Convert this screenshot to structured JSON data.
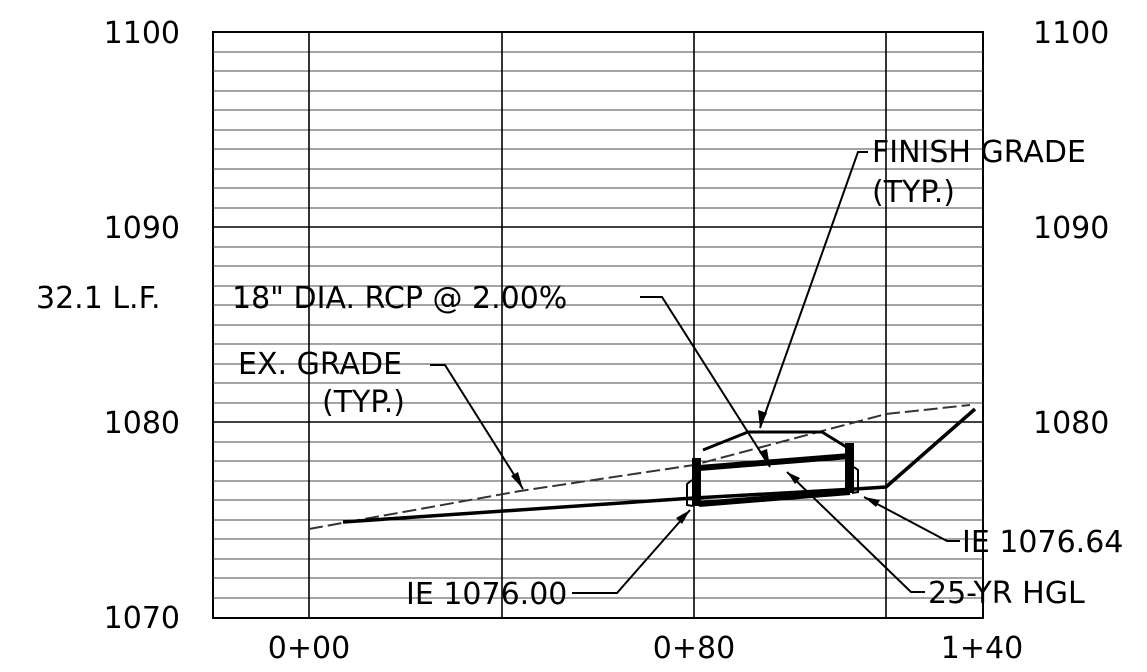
{
  "elevation_labels_left": [
    "1100",
    "1090",
    "1080",
    "1070"
  ],
  "elevation_labels_right": [
    "1100",
    "1090",
    "1080"
  ],
  "station_labels": [
    "0+00",
    "0+80",
    "1+40"
  ],
  "pipe_length_label": "32.1 L.F.",
  "pipe_callout": "18\" DIA. RCP @ 2.00%",
  "existing_grade_label": [
    "EX. GRADE",
    "(TYP.)"
  ],
  "finish_grade_label": [
    "FINISH GRADE",
    "(TYP.)"
  ],
  "invert_labels": {
    "upstream": "IE 1076.00",
    "downstream": "IE 1076.64"
  },
  "hgl_label": "25-YR HGL",
  "colors": {
    "ink": "#000000",
    "grid": "#4a4a4a",
    "paper": "#ffffff"
  }
}
